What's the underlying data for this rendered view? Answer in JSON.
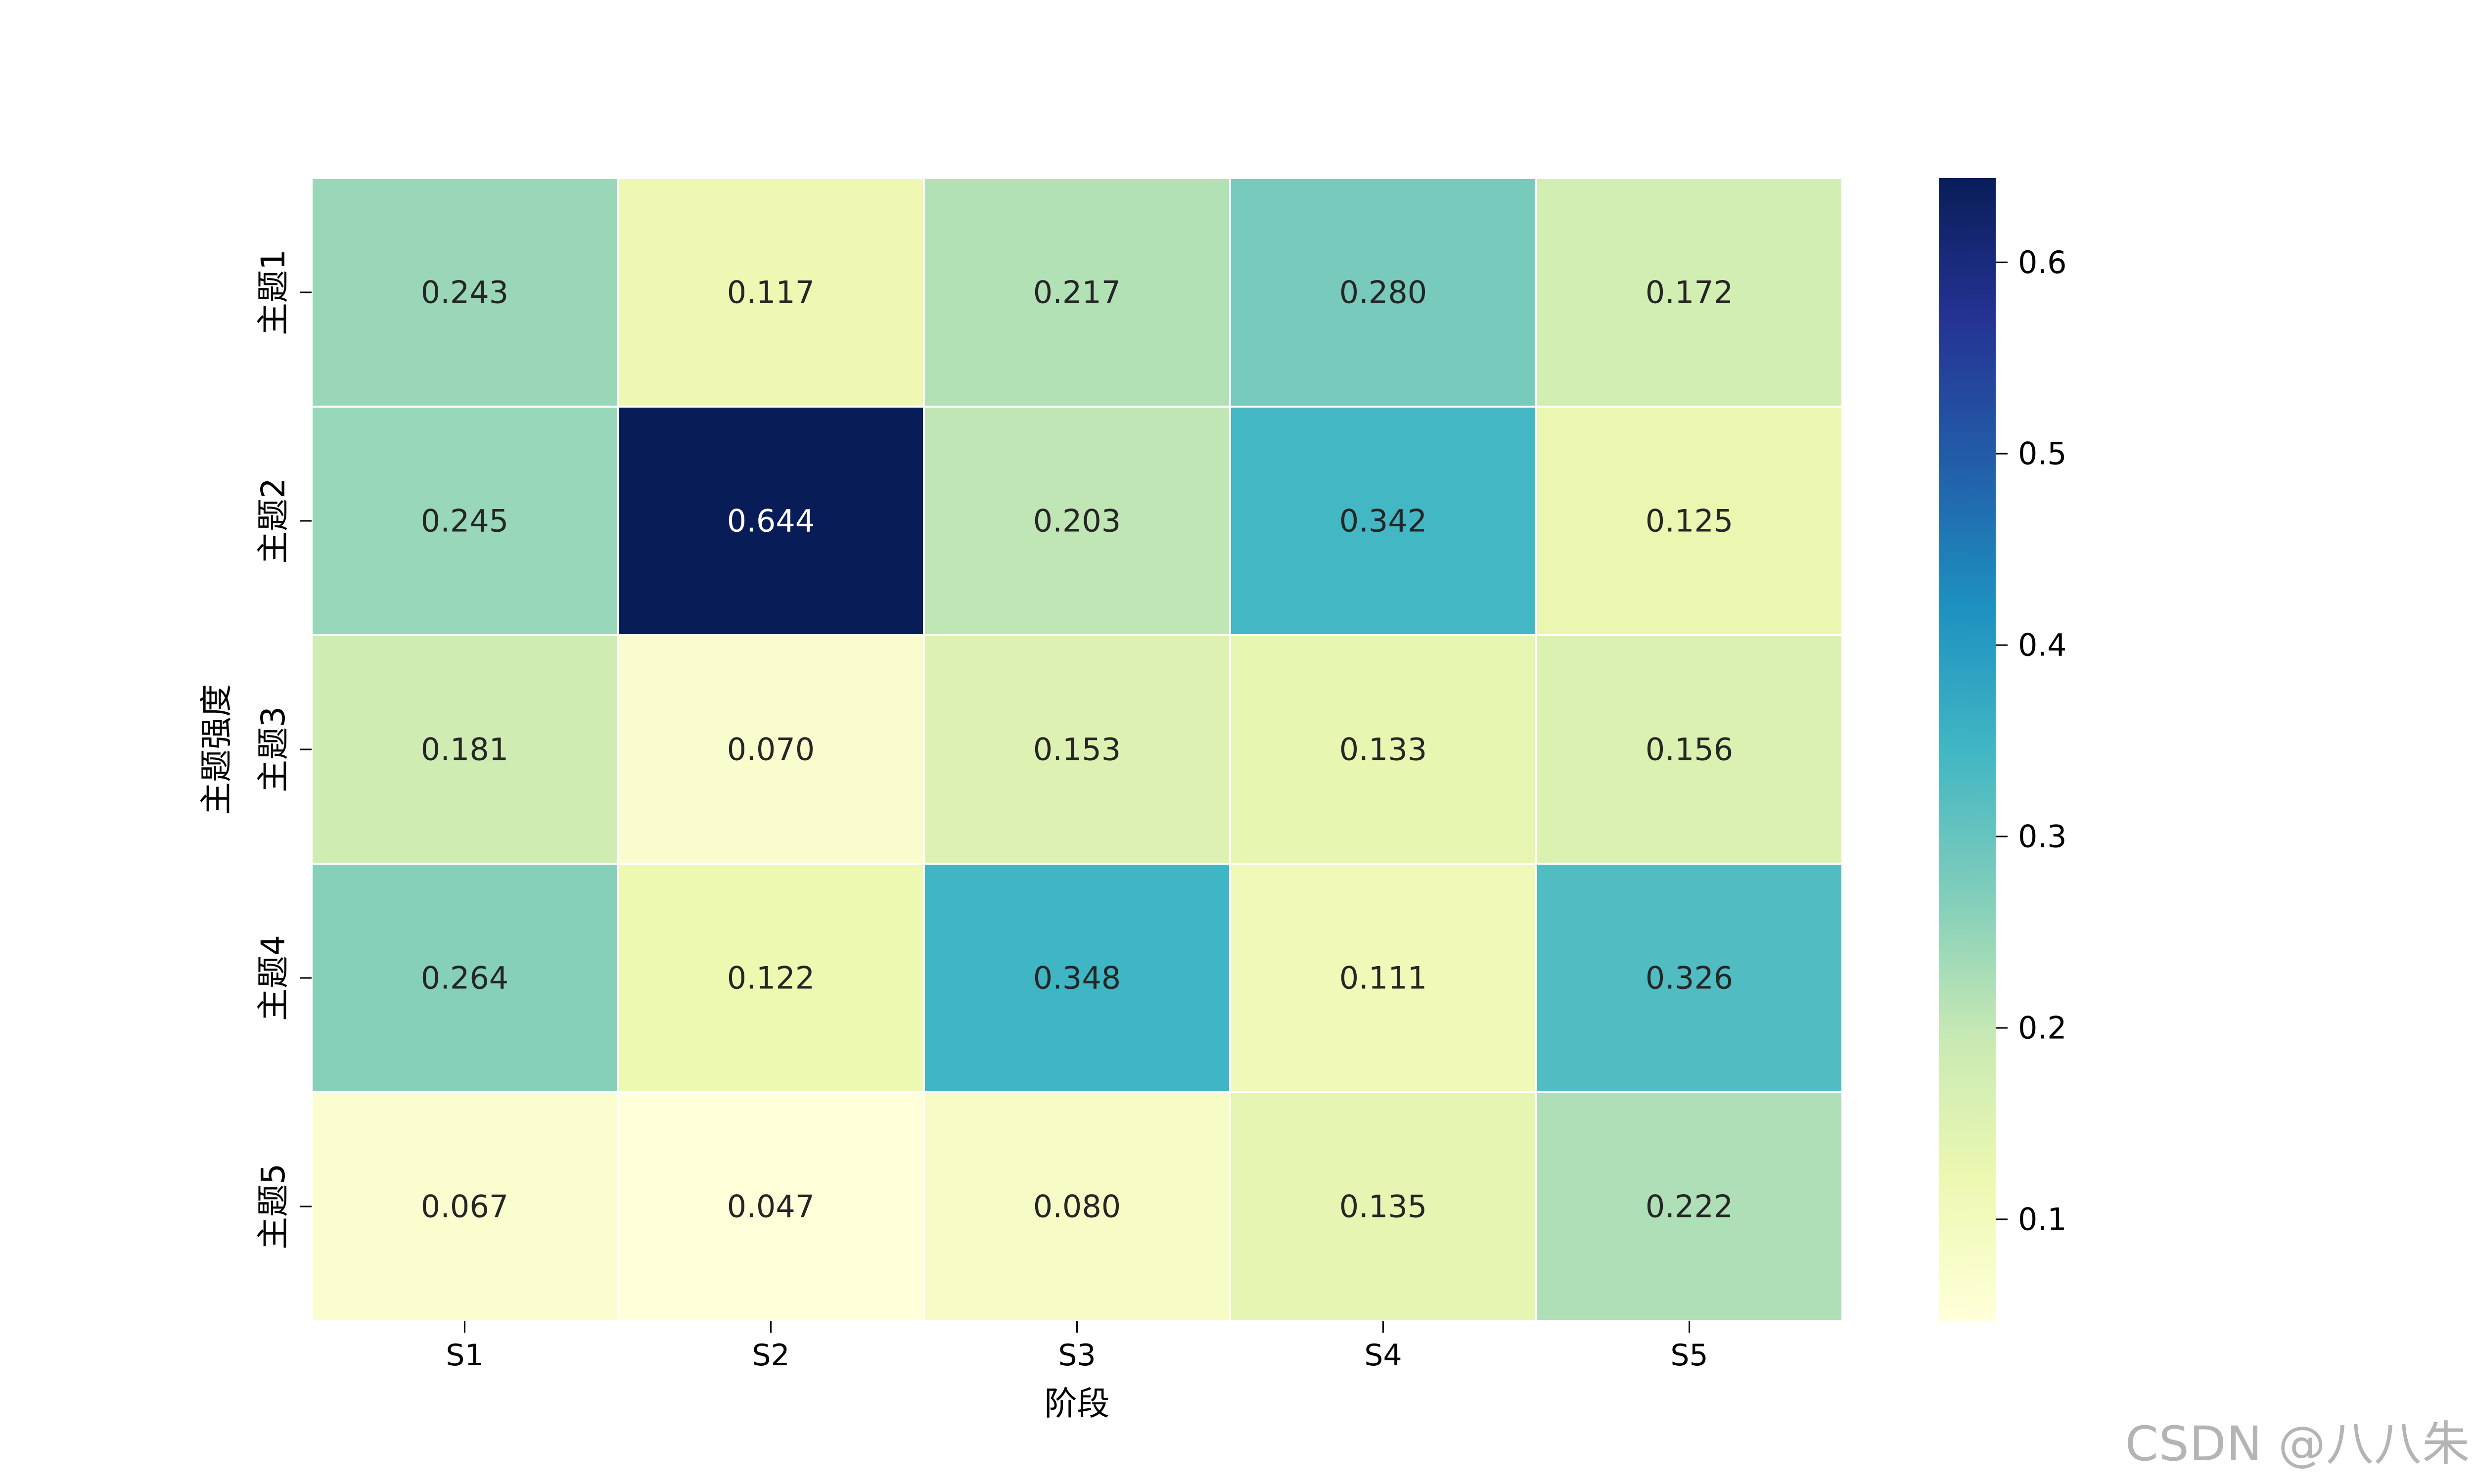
{
  "chart_data": {
    "type": "heatmap",
    "title": "",
    "xlabel": "阶段",
    "ylabel": "主题强度",
    "x_categories": [
      "S1",
      "S2",
      "S3",
      "S4",
      "S5"
    ],
    "y_categories": [
      "主题1",
      "主题2",
      "主题3",
      "主题4",
      "主题5"
    ],
    "values": [
      [
        0.243,
        0.117,
        0.217,
        0.28,
        0.172
      ],
      [
        0.245,
        0.644,
        0.203,
        0.342,
        0.125
      ],
      [
        0.181,
        0.07,
        0.153,
        0.133,
        0.156
      ],
      [
        0.264,
        0.122,
        0.348,
        0.111,
        0.326
      ],
      [
        0.067,
        0.047,
        0.08,
        0.135,
        0.222
      ]
    ],
    "value_labels": [
      [
        "0.243",
        "0.117",
        "0.217",
        "0.280",
        "0.172"
      ],
      [
        "0.245",
        "0.644",
        "0.203",
        "0.342",
        "0.125"
      ],
      [
        "0.181",
        "0.070",
        "0.153",
        "0.133",
        "0.156"
      ],
      [
        "0.264",
        "0.122",
        "0.348",
        "0.111",
        "0.326"
      ],
      [
        "0.067",
        "0.047",
        "0.080",
        "0.135",
        "0.222"
      ]
    ],
    "colormap": "YlGnBu",
    "colorbar": {
      "vmin": 0.047,
      "vmax": 0.644,
      "ticks": [
        0.1,
        0.2,
        0.3,
        0.4,
        0.5,
        0.6
      ],
      "tick_labels": [
        "0.1",
        "0.2",
        "0.3",
        "0.4",
        "0.5",
        "0.6"
      ]
    },
    "grid": false,
    "legend": "none"
  },
  "watermark": "CSDN @八八朱"
}
